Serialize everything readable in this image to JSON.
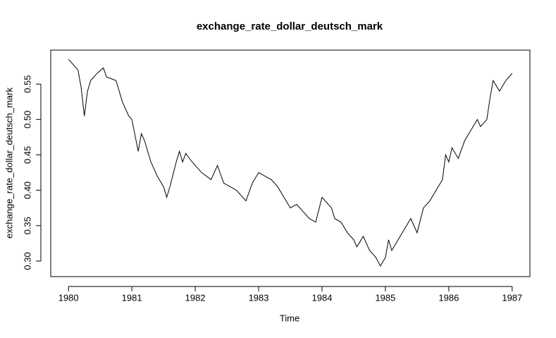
{
  "chart_data": {
    "type": "line",
    "title": "exchange_rate_dollar_deutsch_mark",
    "x_label": "Time",
    "y_label": "exchange_rate_dollar_deutsch_mark",
    "x": [
      1980.0,
      1980.1,
      1980.15,
      1980.2,
      1980.25,
      1980.3,
      1980.35,
      1980.45,
      1980.55,
      1980.6,
      1980.75,
      1980.85,
      1980.95,
      1981.0,
      1981.1,
      1981.15,
      1981.2,
      1981.3,
      1981.4,
      1981.5,
      1981.55,
      1981.6,
      1981.7,
      1981.75,
      1981.8,
      1981.85,
      1981.95,
      1982.1,
      1982.25,
      1982.35,
      1982.45,
      1982.55,
      1982.65,
      1982.8,
      1982.9,
      1983.0,
      1983.1,
      1983.2,
      1983.3,
      1983.4,
      1983.5,
      1983.6,
      1983.7,
      1983.8,
      1983.9,
      1984.0,
      1984.05,
      1984.15,
      1984.2,
      1984.3,
      1984.4,
      1984.5,
      1984.55,
      1984.65,
      1984.75,
      1984.85,
      1984.92,
      1985.0,
      1985.05,
      1985.1,
      1985.2,
      1985.3,
      1985.4,
      1985.5,
      1985.6,
      1985.7,
      1985.8,
      1985.9,
      1985.95,
      1986.0,
      1986.05,
      1986.15,
      1986.25,
      1986.35,
      1986.45,
      1986.5,
      1986.6,
      1986.65,
      1986.7,
      1986.8,
      1986.9,
      1987.0
    ],
    "series": [
      {
        "name": "exchange_rate_dollar_deutsch_mark",
        "color": "#000000",
        "values": [
          0.585,
          0.575,
          0.57,
          0.545,
          0.505,
          0.54,
          0.555,
          0.565,
          0.573,
          0.56,
          0.555,
          0.525,
          0.505,
          0.5,
          0.455,
          0.48,
          0.47,
          0.44,
          0.42,
          0.405,
          0.39,
          0.405,
          0.44,
          0.455,
          0.44,
          0.452,
          0.44,
          0.425,
          0.415,
          0.435,
          0.41,
          0.405,
          0.4,
          0.385,
          0.41,
          0.425,
          0.42,
          0.415,
          0.405,
          0.39,
          0.375,
          0.38,
          0.37,
          0.36,
          0.355,
          0.39,
          0.385,
          0.375,
          0.36,
          0.355,
          0.34,
          0.33,
          0.32,
          0.335,
          0.315,
          0.305,
          0.293,
          0.305,
          0.33,
          0.315,
          0.33,
          0.345,
          0.36,
          0.34,
          0.375,
          0.385,
          0.4,
          0.415,
          0.45,
          0.44,
          0.46,
          0.445,
          0.47,
          0.485,
          0.5,
          0.49,
          0.5,
          0.53,
          0.555,
          0.54,
          0.555,
          0.565
        ]
      }
    ],
    "xlim": [
      1979.72,
      1987.28
    ],
    "ylim": [
      0.278,
      0.598
    ],
    "xticks": [
      1980,
      1981,
      1982,
      1983,
      1984,
      1985,
      1986,
      1987
    ],
    "yticks": [
      {
        "value": 0.3,
        "label": "0.30"
      },
      0.35,
      {
        "value": 0.4,
        "label": "0.40"
      },
      0.45,
      {
        "value": 0.5,
        "label": "0.50"
      },
      0.55
    ]
  }
}
